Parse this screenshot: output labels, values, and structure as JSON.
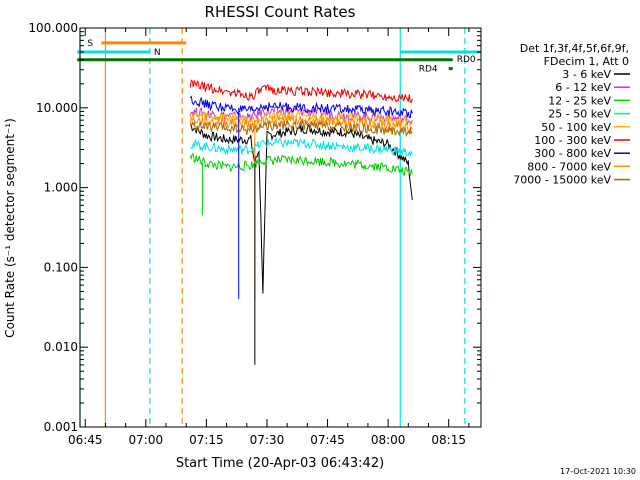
{
  "chart_data": {
    "type": "line",
    "title": "RHESSI Count Rates",
    "xlabel": "Start Time (20-Apr-03 06:43:42)",
    "ylabel": "Count Rate (s⁻¹ detector segment⁻¹)",
    "x_ticks": [
      "06:45",
      "07:00",
      "07:15",
      "07:30",
      "07:45",
      "08:00",
      "08:15"
    ],
    "y_ticks": [
      "0.001",
      "0.010",
      "0.100",
      "1.000",
      "10.000",
      "100.000"
    ],
    "y_scale": "log",
    "ylim": [
      0.001,
      100
    ],
    "xlim": [
      "06:43:42",
      "08:23:00"
    ],
    "legend": {
      "placement": "right",
      "header": [
        "Det 1f,3f,4f,5f,6f,9f,",
        "FDecim 1, Att 0"
      ]
    },
    "series": [
      {
        "name": "3 - 6 keV",
        "color": "#000000",
        "x": [
          "07:11",
          "07:15",
          "07:20",
          "07:26",
          "07:27",
          "07:28",
          "07:29",
          "07:30",
          "07:35",
          "07:40",
          "07:45",
          "07:50",
          "07:55",
          "08:00",
          "08:05",
          "08:06"
        ],
        "values": [
          6.0,
          4.5,
          4.0,
          4.0,
          2.0,
          3.0,
          0.05,
          4.5,
          5.0,
          5.5,
          5.0,
          5.0,
          4.0,
          3.5,
          2.0,
          0.7
        ]
      },
      {
        "name": "6 - 12 keV",
        "color": "#cc33cc",
        "x": [
          "07:11",
          "07:20",
          "07:26",
          "07:29",
          "07:40",
          "07:50",
          "08:00",
          "08:06"
        ],
        "values": [
          9.0,
          8.0,
          7.5,
          9.0,
          9.0,
          8.0,
          7.5,
          7.0
        ]
      },
      {
        "name": "12 - 25 keV",
        "color": "#00cc00",
        "x": [
          "07:11",
          "07:15",
          "07:20",
          "07:26",
          "07:29",
          "07:40",
          "07:50",
          "08:00",
          "08:06"
        ],
        "values": [
          2.5,
          2.0,
          1.8,
          1.9,
          2.2,
          2.2,
          2.0,
          1.8,
          1.5
        ]
      },
      {
        "name": "25 - 50 keV",
        "color": "#00e0e0",
        "x": [
          "07:11",
          "07:20",
          "07:26",
          "07:29",
          "07:40",
          "07:50",
          "08:00",
          "08:06"
        ],
        "values": [
          3.5,
          3.0,
          3.0,
          3.6,
          3.6,
          3.2,
          3.0,
          2.7
        ]
      },
      {
        "name": "50 - 100 keV",
        "color": "#ffb000",
        "x": [
          "07:11",
          "07:20",
          "07:26",
          "07:29",
          "07:40",
          "07:50",
          "08:00",
          "08:06"
        ],
        "values": [
          8.0,
          7.5,
          7.0,
          8.0,
          8.0,
          7.5,
          7.0,
          6.5
        ]
      },
      {
        "name": "100 - 300 keV",
        "color": "#ee0000",
        "x": [
          "07:11",
          "07:15",
          "07:20",
          "07:26",
          "07:29",
          "07:40",
          "07:50",
          "08:00",
          "08:06"
        ],
        "values": [
          20,
          18,
          16,
          14,
          17,
          16,
          15,
          14,
          13
        ]
      },
      {
        "name": "300 - 800 keV",
        "color": "#0000ee",
        "x": [
          "07:11",
          "07:15",
          "07:20",
          "07:26",
          "07:29",
          "07:40",
          "07:50",
          "08:00",
          "08:06"
        ],
        "values": [
          13,
          11,
          10,
          9,
          10.5,
          10,
          9.5,
          9,
          8.5
        ]
      },
      {
        "name": "800 - 7000 keV",
        "color": "#ff8800",
        "x": [
          "07:11",
          "07:20",
          "07:26",
          "07:29",
          "07:40",
          "07:50",
          "08:00",
          "08:06"
        ],
        "values": [
          7.0,
          6.5,
          6.0,
          7.0,
          7.0,
          6.5,
          6.0,
          5.5
        ]
      },
      {
        "name": "7000 - 15000 keV",
        "color": "#aa6600",
        "x": [
          "07:11",
          "07:20",
          "07:26",
          "07:29",
          "07:40",
          "07:50",
          "08:00",
          "08:06"
        ],
        "values": [
          6.0,
          5.5,
          5.2,
          6.0,
          6.0,
          5.6,
          5.2,
          5.0
        ]
      }
    ],
    "spikes": [
      {
        "color": "#0000ee",
        "x": "07:23",
        "values": [
          10,
          0.04
        ]
      },
      {
        "color": "#ff8800",
        "x": "07:27",
        "values": [
          7,
          0.04
        ]
      },
      {
        "color": "#00cc00",
        "x": "07:14",
        "values": [
          2,
          0.45
        ]
      },
      {
        "color": "#000000",
        "x": "07:27",
        "values": [
          2,
          0.006
        ]
      }
    ],
    "flags": {
      "S": {
        "color": "#ff8800",
        "x_start": "06:49",
        "x_end": "07:10",
        "y": 65
      },
      "N": {
        "color": "#00e0e0",
        "segments": [
          [
            "06:43",
            "07:01"
          ],
          [
            "08:03",
            "08:23"
          ]
        ],
        "y": 50
      },
      "RD0": {
        "color": "#007700",
        "x_start": "06:43",
        "x_end": "08:16",
        "y": 40
      },
      "RD4": {
        "color": "#007700",
        "x_start": "08:15",
        "x_end": "08:16",
        "y": 31
      }
    },
    "vlines": [
      {
        "color": "#00e0e0",
        "dashed": false,
        "x": "06:43:42"
      },
      {
        "color": "#ff8800",
        "dashed": false,
        "x": "06:50"
      },
      {
        "color": "#00e0e0",
        "dashed": true,
        "x": "07:01"
      },
      {
        "color": "#ff8800",
        "dashed": true,
        "x": "07:09"
      },
      {
        "color": "#00e0e0",
        "dashed": false,
        "x": "08:03"
      },
      {
        "color": "#00e0e0",
        "dashed": true,
        "x": "08:19"
      }
    ],
    "timestamp": "17-Oct-2021 10:30"
  }
}
